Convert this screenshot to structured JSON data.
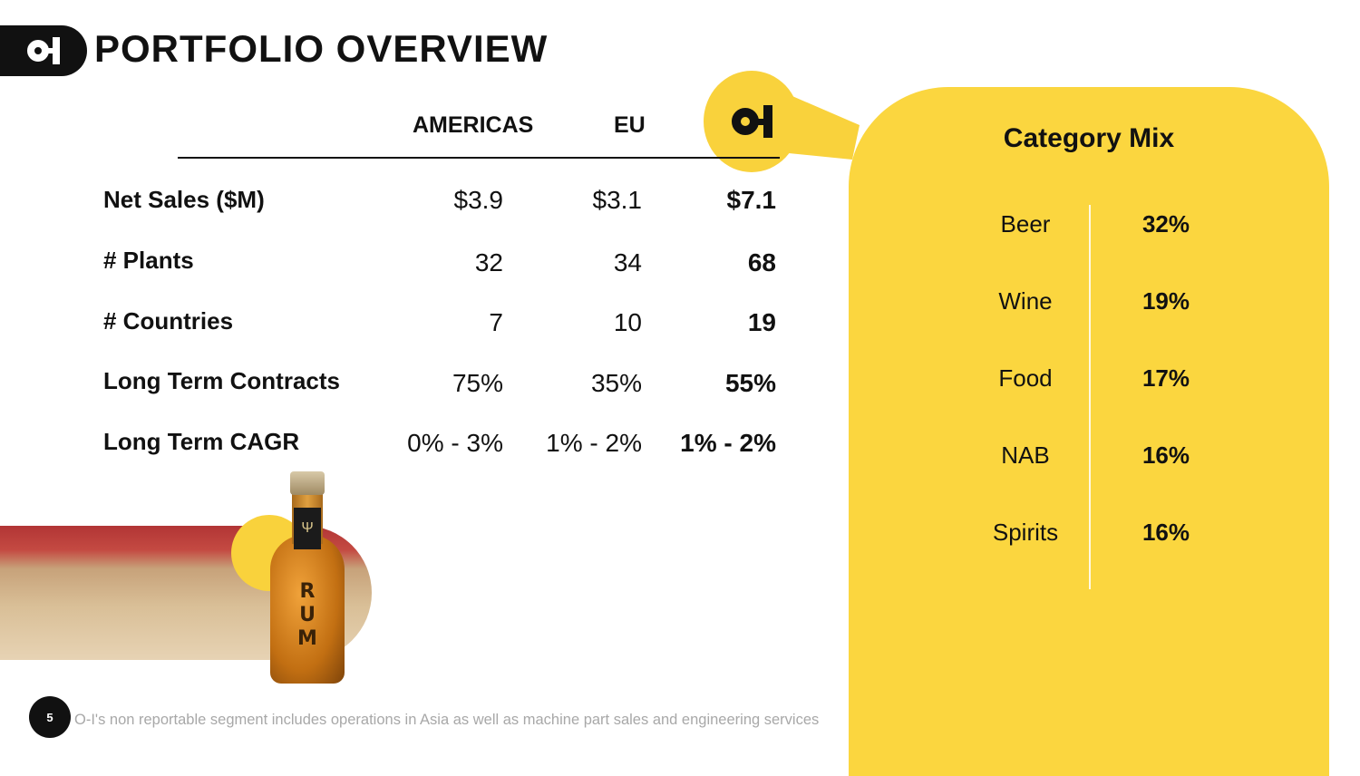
{
  "header": {
    "title": "PORTFOLIO OVERVIEW"
  },
  "table": {
    "columns": [
      "AMERICAS",
      "EU"
    ],
    "rows": [
      {
        "label": "Net Sales ($M)",
        "americas": "$3.9",
        "eu": "$3.1",
        "total": "$7.1"
      },
      {
        "label": "# Plants",
        "americas": "32",
        "eu": "34",
        "total": "68"
      },
      {
        "label": "# Countries",
        "americas": "7",
        "eu": "10",
        "total": "19"
      },
      {
        "label": "Long Term Contracts",
        "americas": "75%",
        "eu": "35%",
        "total": "55%"
      },
      {
        "label": "Long Term CAGR",
        "americas": "0% - 3%",
        "eu": "1% - 2%",
        "total": "1% - 2%"
      }
    ]
  },
  "category_mix": {
    "title": "Category Mix",
    "items": [
      {
        "name": "Beer",
        "value": "32%"
      },
      {
        "name": "Wine",
        "value": "19%"
      },
      {
        "name": "Food",
        "value": "17%"
      },
      {
        "name": "NAB",
        "value": "16%"
      },
      {
        "name": "Spirits",
        "value": "16%"
      }
    ]
  },
  "photo": {
    "bottle_text": "RUM",
    "bottle_emblem": "Ψ"
  },
  "footer": {
    "page_number": "5",
    "footnote": "O-I's non reportable segment includes operations in Asia as well as machine part sales and engineering services"
  },
  "colors": {
    "accent": "#fbd63f",
    "dark": "#111111"
  }
}
